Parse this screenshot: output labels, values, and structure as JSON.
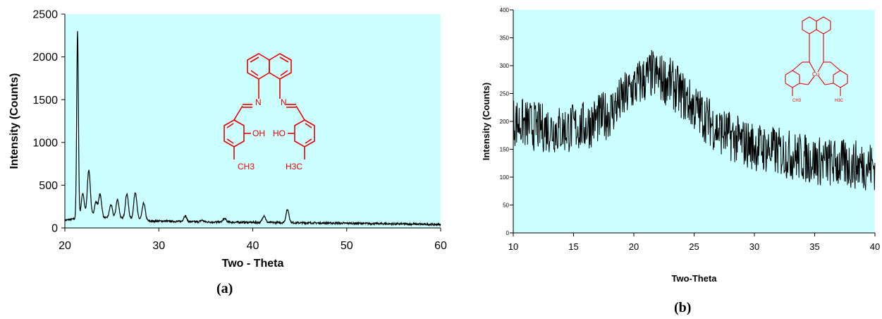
{
  "chart_data": [
    {
      "type": "line",
      "xlabel": "Two - Theta",
      "ylabel": "Intensity (Counts)",
      "xlim": [
        20,
        60
      ],
      "ylim": [
        0,
        2500
      ],
      "xticks": [
        "20",
        "30",
        "40",
        "50",
        "60"
      ],
      "yticks": [
        "0",
        "500",
        "1000",
        "1500",
        "2000",
        "2500"
      ],
      "grid": false,
      "plot_background": "#ccffff",
      "line_color": "#000000",
      "caption": "(a)",
      "peaks": [
        {
          "x": 21.35,
          "y": 2300
        },
        {
          "x": 21.9,
          "y": 400
        },
        {
          "x": 22.55,
          "y": 680
        },
        {
          "x": 23.3,
          "y": 300
        },
        {
          "x": 23.75,
          "y": 390
        },
        {
          "x": 24.9,
          "y": 270
        },
        {
          "x": 25.6,
          "y": 330
        },
        {
          "x": 26.6,
          "y": 400
        },
        {
          "x": 27.5,
          "y": 420
        },
        {
          "x": 28.4,
          "y": 290
        },
        {
          "x": 32.8,
          "y": 140
        },
        {
          "x": 34.6,
          "y": 90
        },
        {
          "x": 37.0,
          "y": 110
        },
        {
          "x": 41.2,
          "y": 145
        },
        {
          "x": 43.7,
          "y": 215
        }
      ],
      "baseline": [
        [
          20,
          90
        ],
        [
          21,
          105
        ],
        [
          22.5,
          140
        ],
        [
          24,
          120
        ],
        [
          26,
          110
        ],
        [
          28,
          100
        ],
        [
          29,
          80
        ],
        [
          30,
          80
        ],
        [
          35,
          70
        ],
        [
          40,
          65
        ],
        [
          45,
          60
        ],
        [
          50,
          55
        ],
        [
          55,
          48
        ],
        [
          60,
          40
        ]
      ],
      "inset_labels": [
        "OH",
        "CH3",
        "HO",
        "H3C",
        "N",
        "N"
      ]
    },
    {
      "type": "line",
      "xlabel": "Two-Theta",
      "ylabel": "Intensity (Counts)",
      "xlim": [
        10,
        40
      ],
      "ylim": [
        0,
        400
      ],
      "xticks": [
        "10",
        "15",
        "20",
        "25",
        "30",
        "35",
        "40"
      ],
      "yticks": [
        "0",
        "50",
        "100",
        "150",
        "200",
        "250",
        "300",
        "350",
        "400"
      ],
      "grid": false,
      "plot_background": "#ccffff",
      "line_color": "#000000",
      "caption": "(b)",
      "trend": [
        [
          10,
          200
        ],
        [
          12,
          190
        ],
        [
          14,
          185
        ],
        [
          16,
          192
        ],
        [
          18,
          215
        ],
        [
          20,
          262
        ],
        [
          21.5,
          285
        ],
        [
          23,
          270
        ],
        [
          25,
          225
        ],
        [
          27,
          185
        ],
        [
          29,
          162
        ],
        [
          31,
          150
        ],
        [
          33,
          140
        ],
        [
          35,
          130
        ],
        [
          37,
          124
        ],
        [
          40,
          120
        ]
      ],
      "noise_amplitude": 45,
      "inset_labels": [
        "Cu",
        "CH3",
        "H3C"
      ]
    }
  ]
}
